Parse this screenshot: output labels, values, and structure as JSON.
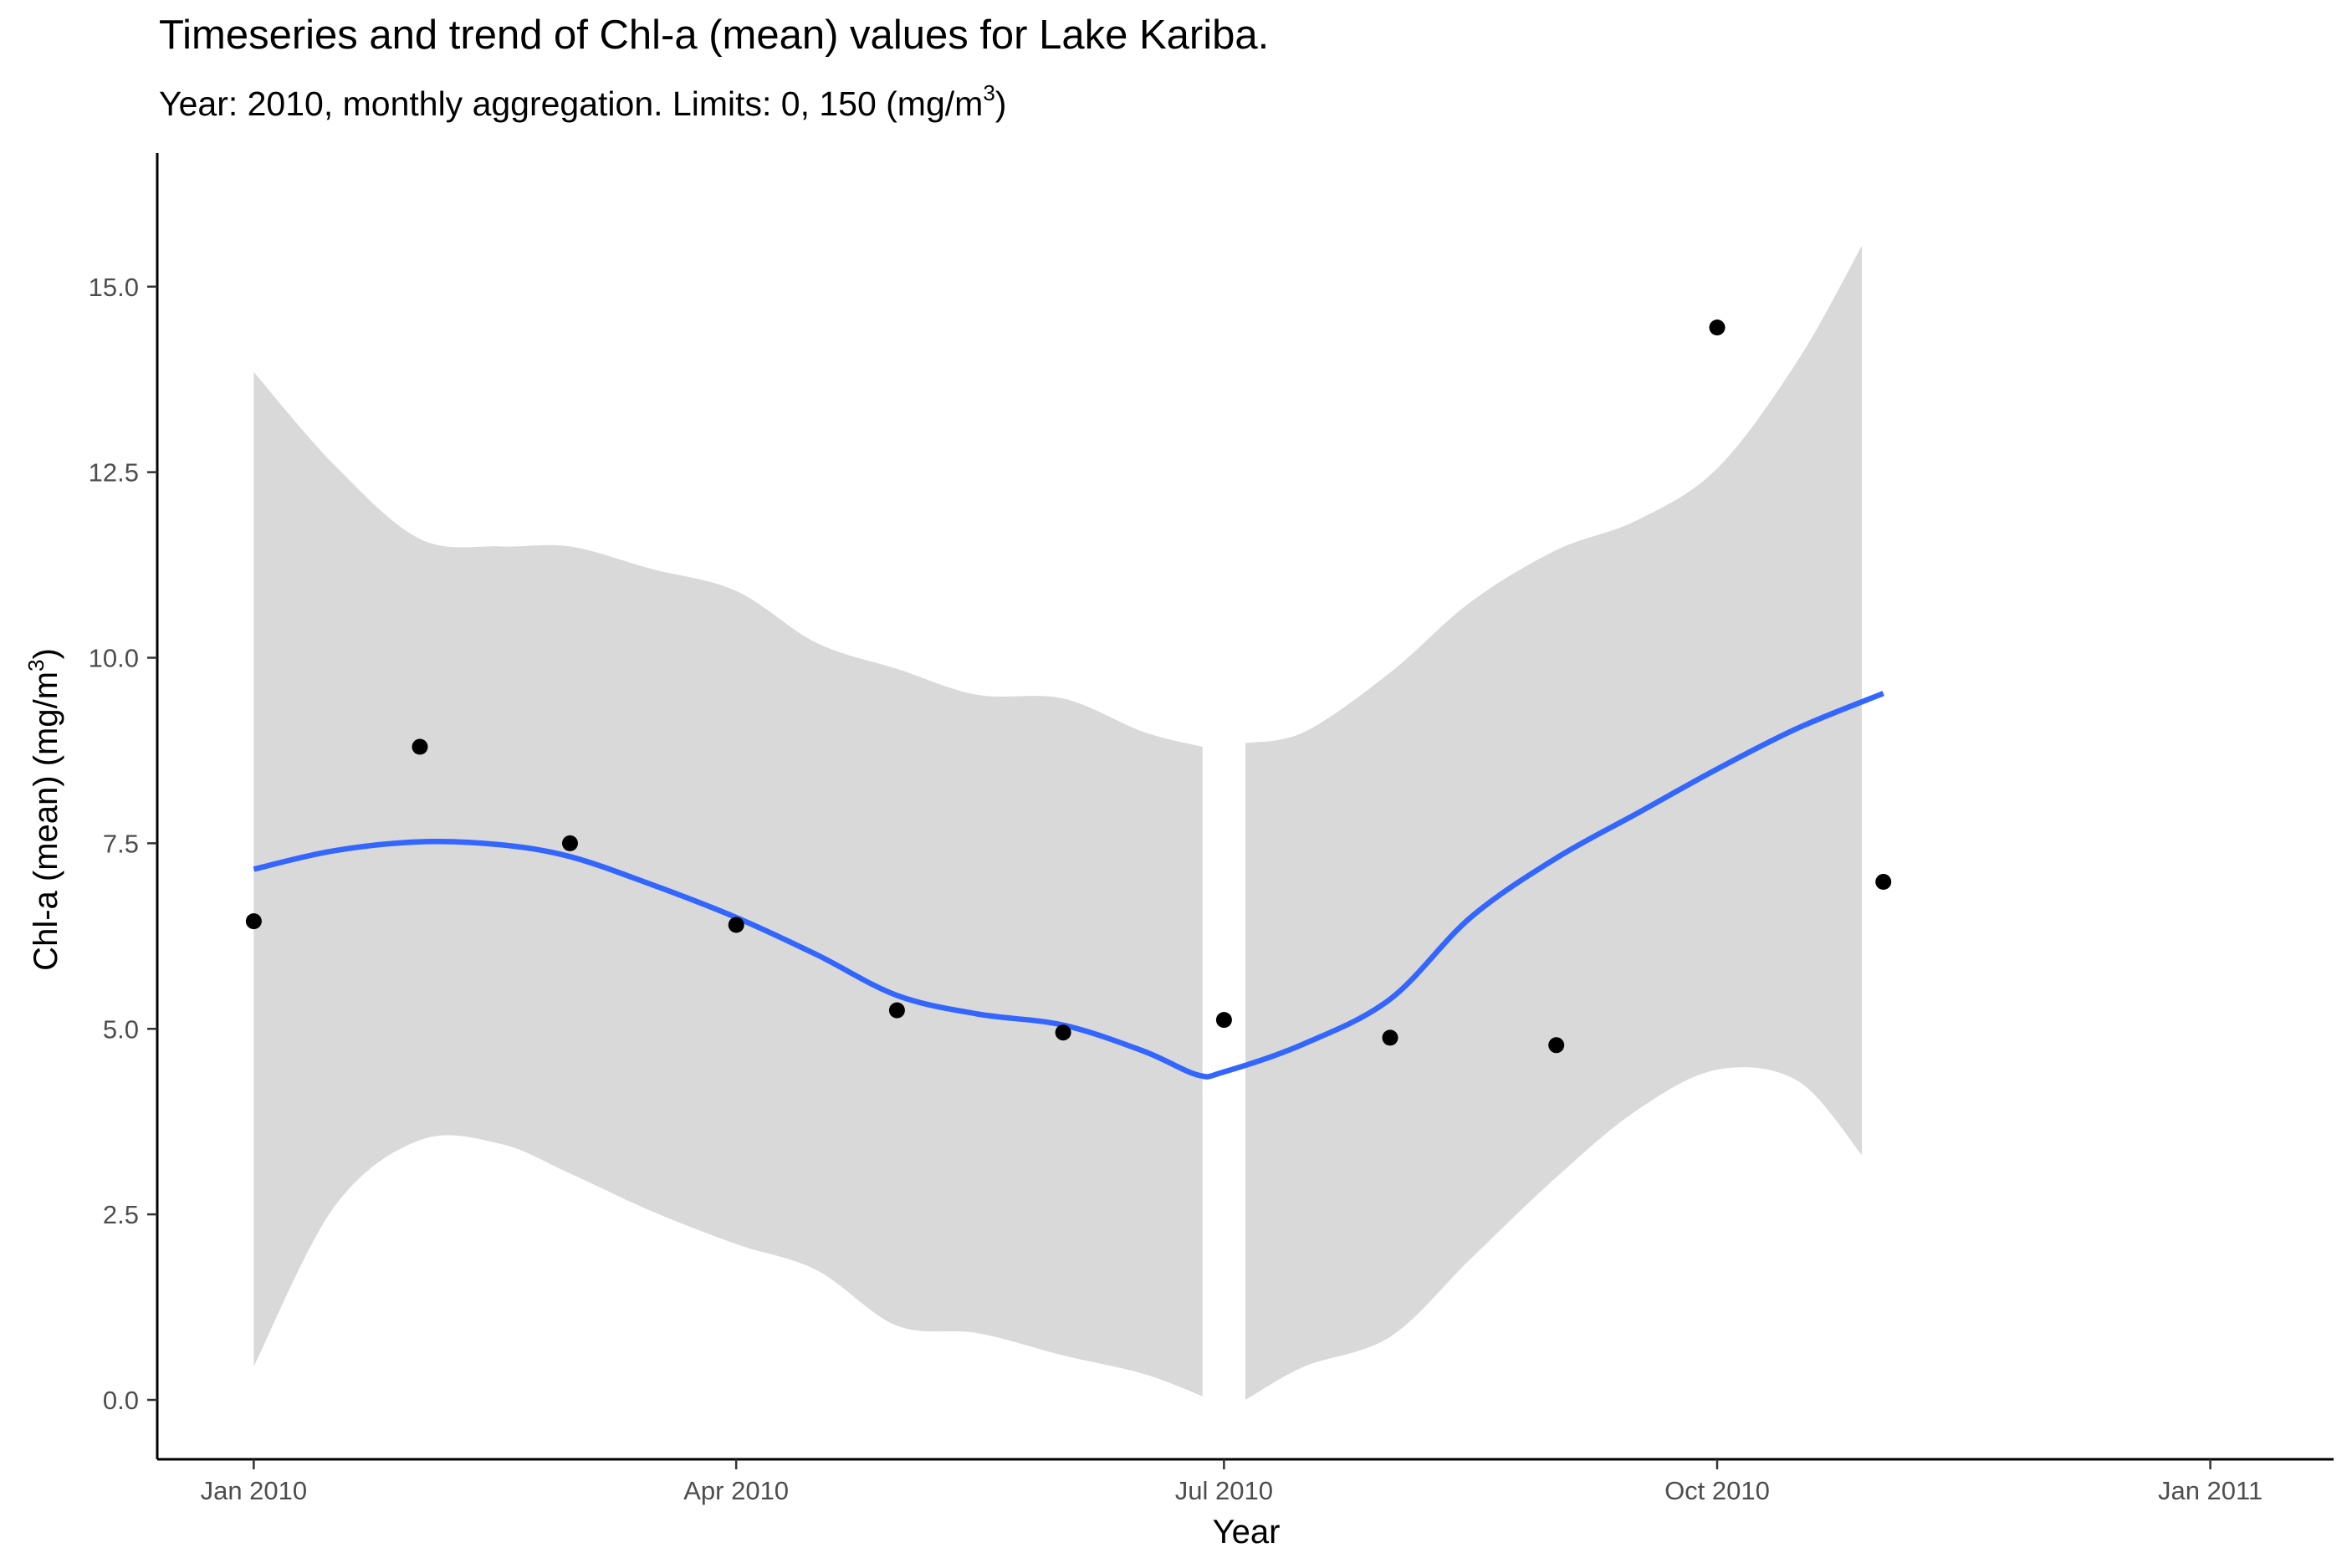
{
  "chart_data": {
    "type": "scatter",
    "title": "Timeseries and trend of Chl-a (mean) values for Lake Kariba.",
    "subtitle_prefix": "Year: 2010, monthly aggregation. Limits: 0, 150 (mg/m",
    "subtitle_sup": "3",
    "subtitle_suffix": ")",
    "xlabel": "Year",
    "ylabel": "Chl-a (mean) (mg/m",
    "ylabel_sup": "3",
    "ylabel_suffix": ")",
    "x_tick_labels": [
      "Jan 2010",
      "Apr 2010",
      "Jul 2010",
      "Oct 2010",
      "Jan 2011"
    ],
    "x_tick_dates": [
      "2010-01-01",
      "2010-04-01",
      "2010-07-01",
      "2010-10-01",
      "2011-01-01"
    ],
    "y_ticks": [
      0.0,
      2.5,
      5.0,
      7.5,
      10.0,
      12.5,
      15.0
    ],
    "y_tick_labels": [
      "0.0",
      "2.5",
      "5.0",
      "7.5",
      "10.0",
      "12.5",
      "15.0"
    ],
    "xlim": [
      "2009-12-14",
      "2011-01-24"
    ],
    "ylim": [
      -0.8,
      16.8
    ],
    "grid": false,
    "colors": {
      "points": "#000000",
      "trend": "#3366FF",
      "ribbon": "#D9D9D9",
      "axis": "#000000"
    },
    "series": [
      {
        "kind": "points",
        "x": [
          "2010-01-01",
          "2010-02-01",
          "2010-03-01",
          "2010-04-01",
          "2010-05-01",
          "2010-06-01",
          "2010-07-01",
          "2010-08-01",
          "2010-09-01",
          "2010-10-01",
          "2010-11-01"
        ],
        "y": [
          6.45,
          8.8,
          7.5,
          6.4,
          5.25,
          4.95,
          5.12,
          4.88,
          4.78,
          14.45,
          6.98
        ]
      },
      {
        "kind": "trend",
        "x": [
          "2010-01-01",
          "2010-01-16",
          "2010-02-01",
          "2010-02-16",
          "2010-03-01",
          "2010-03-16",
          "2010-04-01",
          "2010-04-16",
          "2010-05-01",
          "2010-05-16",
          "2010-06-01",
          "2010-06-16",
          "2010-06-26",
          "2010-07-01",
          "2010-07-16",
          "2010-08-01",
          "2010-08-16",
          "2010-09-01",
          "2010-09-16",
          "2010-10-01",
          "2010-10-16",
          "2010-11-01"
        ],
        "y": [
          7.15,
          7.4,
          7.52,
          7.48,
          7.32,
          6.95,
          6.5,
          6.0,
          5.45,
          5.2,
          5.05,
          4.7,
          4.38,
          4.42,
          4.8,
          5.4,
          6.5,
          7.3,
          7.9,
          8.5,
          9.05,
          9.52
        ]
      },
      {
        "kind": "confidence_band",
        "segments": [
          {
            "x": [
              "2010-01-01",
              "2010-01-16",
              "2010-02-01",
              "2010-02-16",
              "2010-03-01",
              "2010-03-16",
              "2010-04-01",
              "2010-04-16",
              "2010-05-01",
              "2010-05-16",
              "2010-06-01",
              "2010-06-16",
              "2010-06-27"
            ],
            "upper": [
              13.85,
              12.6,
              11.6,
              11.5,
              11.5,
              11.2,
              10.9,
              10.2,
              9.85,
              9.5,
              9.45,
              9.0,
              8.8
            ],
            "lower": [
              0.45,
              2.6,
              3.5,
              3.45,
              3.05,
              2.55,
              2.1,
              1.75,
              1.0,
              0.9,
              0.6,
              0.35,
              0.05
            ]
          },
          {
            "x": [
              "2010-07-05",
              "2010-07-16",
              "2010-08-01",
              "2010-08-16",
              "2010-09-01",
              "2010-09-16",
              "2010-10-01",
              "2010-10-16",
              "2010-10-28"
            ],
            "upper": [
              8.85,
              9.0,
              9.8,
              10.75,
              11.45,
              11.85,
              12.55,
              14.0,
              15.55
            ],
            "lower": [
              0.0,
              0.45,
              0.85,
              1.9,
              3.0,
              3.9,
              4.45,
              4.3,
              3.3
            ]
          }
        ]
      }
    ]
  }
}
